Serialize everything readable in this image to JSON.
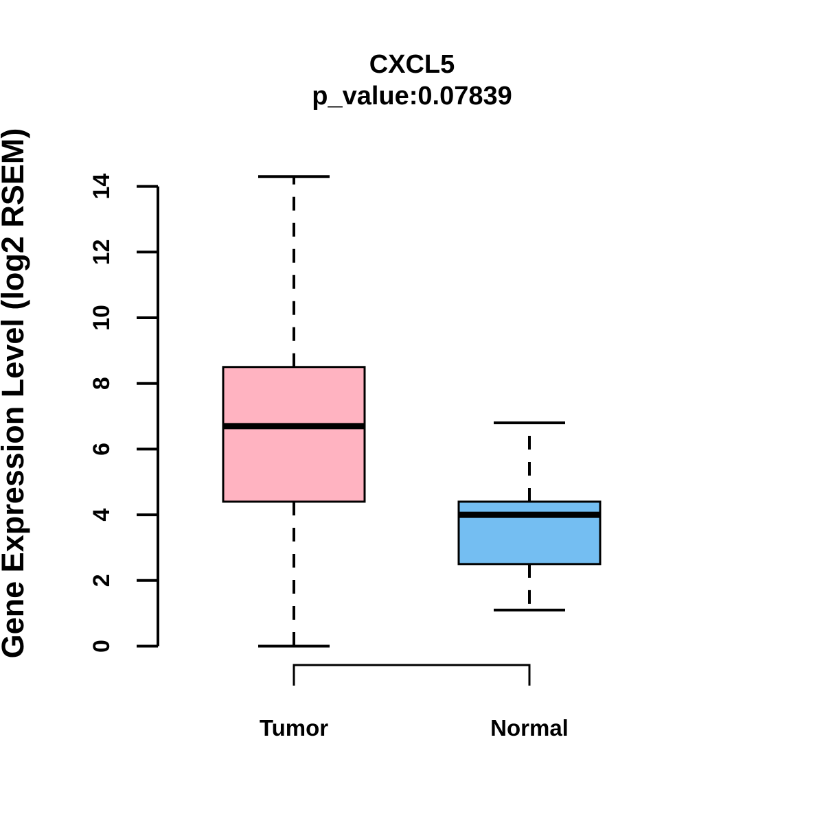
{
  "chart_data": {
    "type": "boxplot",
    "title": "CXCL5",
    "subtitle": "p_value:0.07839",
    "ylabel": "Gene Expression Level (log2 RSEM)",
    "xlabel": "",
    "yticks": [
      0,
      2,
      4,
      6,
      8,
      10,
      12,
      14
    ],
    "ylim": [
      0,
      14.3
    ],
    "grid": false,
    "legend": "none",
    "categories": [
      "Tumor",
      "Normal"
    ],
    "groups": [
      {
        "label": "Tumor",
        "min": 0.0,
        "q1": 4.4,
        "median": 6.7,
        "q3": 8.5,
        "max": 14.3,
        "fill": "#FFB3C1"
      },
      {
        "label": "Normal",
        "min": 1.1,
        "q1": 2.5,
        "median": 4.0,
        "q3": 4.4,
        "max": 6.8,
        "fill": "#74BEF2"
      }
    ],
    "colors": {
      "box_border": "#000000",
      "whisker": "#000000",
      "axis": "#000000",
      "background": "#FFFFFF"
    }
  }
}
